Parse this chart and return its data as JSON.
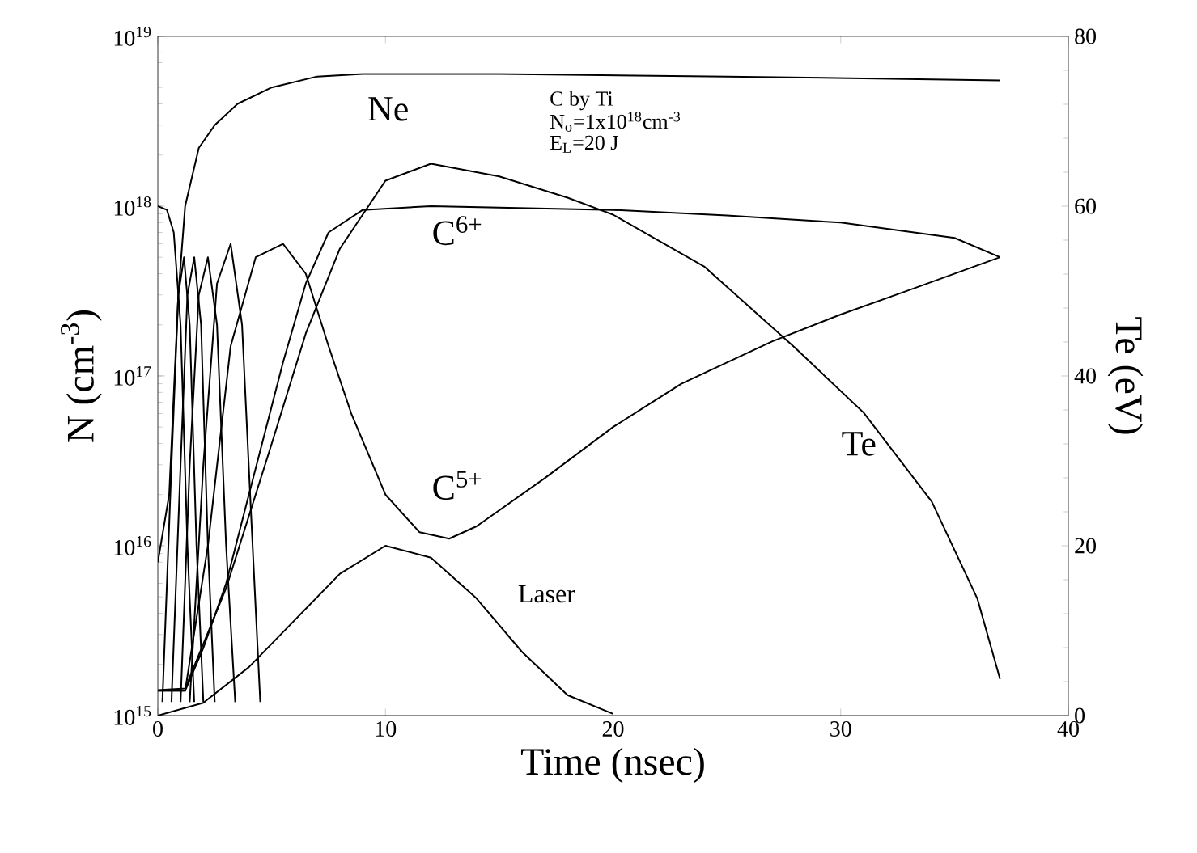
{
  "chart_data": {
    "type": "line",
    "xlabel": "Time (nsec)",
    "ylabel": "N (cm$^{-3}$)",
    "y2label": "Te (eV)",
    "log": "y",
    "legend": false,
    "grid": false,
    "xlim": [
      0,
      40
    ],
    "xticks": [
      0,
      10,
      20,
      30,
      40
    ],
    "ylim": [
      1000000000000000.0,
      1e+19
    ],
    "yticks": [
      {
        "value": 1000000000000000.0,
        "label": "10$^{15}$"
      },
      {
        "value": 1e+16,
        "label": "10$^{16}$"
      },
      {
        "value": 1e+17,
        "label": "10$^{17}$"
      },
      {
        "value": 1e+18,
        "label": "10$^{18}$"
      },
      {
        "value": 1e+19,
        "label": "10$^{19}$"
      }
    ],
    "y2lim": [
      0,
      80
    ],
    "y2ticks": [
      0,
      20,
      40,
      60,
      80
    ],
    "series": [
      {
        "name": "Ne",
        "color": "#000000",
        "x": [
          0,
          0.5,
          0.9,
          1.2,
          1.8,
          2.5,
          3.5,
          5,
          7,
          9,
          15,
          25,
          37
        ],
        "values": [
          8000000000000000.0,
          2e+16,
          3e+17,
          1e+18,
          2.2e+18,
          3e+18,
          4e+18,
          5e+18,
          5.8e+18,
          6e+18,
          6e+18,
          5.8e+18,
          5.5e+18
        ]
      },
      {
        "color": "#000000",
        "x": [
          0,
          0.4,
          0.7,
          1.0,
          1.3,
          1.6
        ],
        "values": [
          1e+18,
          9.5e+17,
          7e+17,
          2e+17,
          1e+16,
          1200000000000000.0
        ]
      },
      {
        "color": "#000000",
        "x": [
          0.2,
          0.6,
          0.9,
          1.15,
          1.4,
          1.7,
          2.0
        ],
        "values": [
          1200000000000000.0,
          3e+16,
          3e+17,
          5e+17,
          2e+17,
          1e+16,
          1200000000000000.0
        ]
      },
      {
        "color": "#000000",
        "x": [
          0.6,
          1.0,
          1.3,
          1.6,
          1.9,
          2.2,
          2.5
        ],
        "values": [
          1200000000000000.0,
          3e+16,
          3e+17,
          5e+17,
          2e+17,
          1e+16,
          1200000000000000.0
        ]
      },
      {
        "color": "#000000",
        "x": [
          1.0,
          1.4,
          1.8,
          2.2,
          2.6,
          3.0,
          3.4
        ],
        "values": [
          1200000000000000.0,
          3e+16,
          3e+17,
          5e+17,
          2e+17,
          1e+16,
          1200000000000000.0
        ]
      },
      {
        "color": "#000000",
        "x": [
          1.4,
          2.0,
          2.6,
          3.2,
          3.7,
          4.1,
          4.5
        ],
        "values": [
          1200000000000000.0,
          3e+16,
          3.5e+17,
          6e+17,
          2e+17,
          1.5e+16,
          1200000000000000.0
        ]
      },
      {
        "name": "C$^{5+}$",
        "color": "#000000",
        "x": [
          0,
          1.2,
          2.2,
          3.2,
          4.3,
          5.5,
          6.5,
          7.5,
          8.5,
          10,
          11.5,
          12.8,
          14,
          17,
          20,
          23,
          27,
          30,
          33,
          37
        ],
        "values": [
          1400000000000000.0,
          1400000000000000.0,
          1e+16,
          1.5e+17,
          5e+17,
          6e+17,
          4e+17,
          1.5e+17,
          6e+16,
          2e+16,
          1.2e+16,
          1.1e+16,
          1.3e+16,
          2.5e+16,
          5e+16,
          9e+16,
          1.6e+17,
          2.3e+17,
          3.2e+17,
          5e+17
        ]
      },
      {
        "name": "C$^{6+}$",
        "color": "#000000",
        "x": [
          0,
          1.2,
          2,
          3,
          4,
          5.5,
          6.5,
          7.5,
          9,
          12,
          20,
          25,
          30,
          35,
          37
        ],
        "values": [
          1400000000000000.0,
          1400000000000000.0,
          2500000000000000.0,
          6000000000000000.0,
          2e+16,
          1.2e+17,
          3.5e+17,
          7e+17,
          9.5e+17,
          1e+18,
          9.5e+17,
          8.8e+17,
          8e+17,
          6.5e+17,
          5e+17
        ]
      },
      {
        "name": "Te",
        "color": "#000000",
        "axis": "y2",
        "x": [
          0,
          1.2,
          3,
          5,
          6.5,
          8,
          10,
          12,
          15,
          18,
          20,
          24,
          28,
          31,
          34,
          36,
          37
        ],
        "values": [
          3,
          3.2,
          15,
          32,
          45,
          55,
          63,
          65,
          63.5,
          61,
          59,
          52.9,
          43.3,
          35.7,
          25.2,
          13.8,
          4.3
        ]
      },
      {
        "name": "Laser",
        "color": "#000000",
        "axis": "y2",
        "x": [
          0,
          2,
          4,
          6,
          8,
          10,
          12,
          14,
          16,
          18,
          20
        ],
        "values": [
          0,
          1.5,
          5.7,
          11.2,
          16.7,
          20,
          18.6,
          13.8,
          7.5,
          2.4,
          0.2
        ]
      }
    ],
    "annotations": [
      "C by Ti",
      "N$_{o}$=1x10$^{18}$cm$^{-3}$",
      "E$_{L}$=20 J"
    ]
  }
}
